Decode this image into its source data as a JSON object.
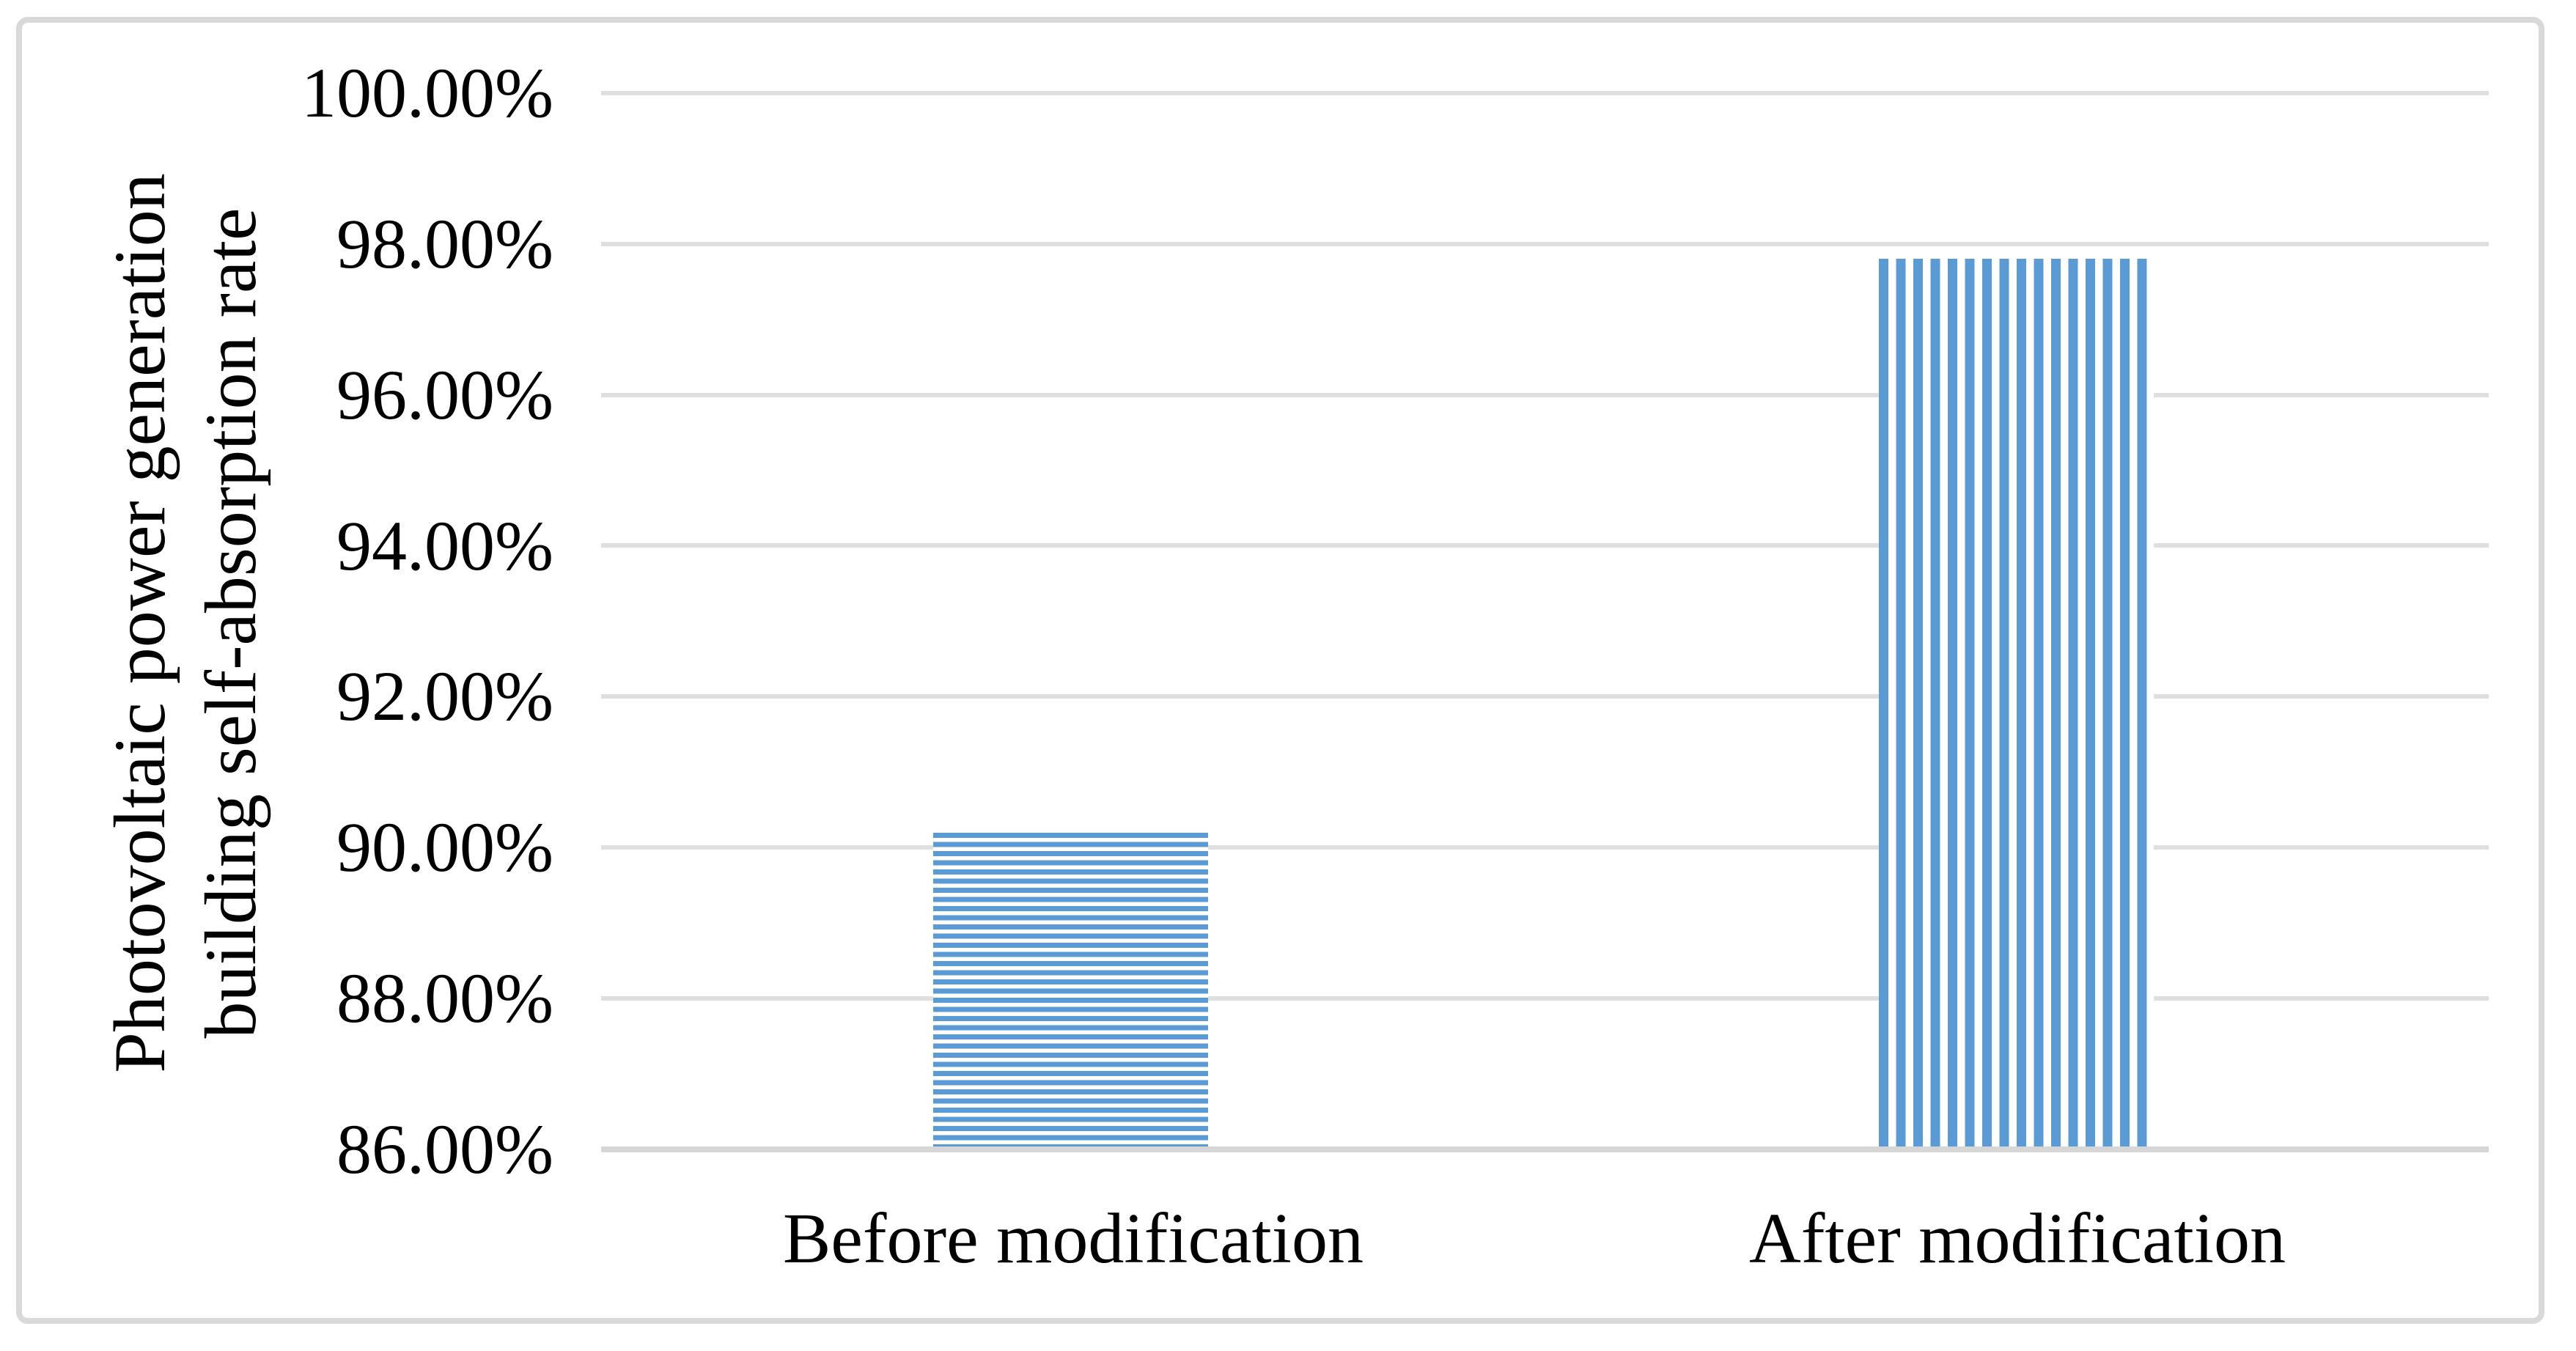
{
  "chart_data": {
    "type": "bar",
    "title": "",
    "categories": [
      "Before modification",
      "After modification"
    ],
    "series": [
      {
        "name": "Photovoltaic power generation building self-absorption rate",
        "values": [
          90.2,
          97.8
        ]
      }
    ],
    "value_unit": "%",
    "ylabel_line1": "Photovoltaic power generation",
    "ylabel_line2": "building self-absorption rate",
    "xlabel": "",
    "yticks": [
      "100.00%",
      "98.00%",
      "96.00%",
      "94.00%",
      "92.00%",
      "90.00%",
      "88.00%",
      "86.00%"
    ],
    "ylim": [
      86,
      100
    ],
    "ytick_step": 2,
    "grid": "horizontal",
    "legend": "none",
    "bar_patterns": [
      "horizontal-stripes",
      "vertical-stripes"
    ],
    "colors": {
      "bar": "#5B9BD5",
      "gridline": "#DFDFDF",
      "axis_line": "#D6D6D6",
      "border": "#D9D9D9",
      "text": "#000000",
      "background": "#FFFFFF"
    }
  }
}
